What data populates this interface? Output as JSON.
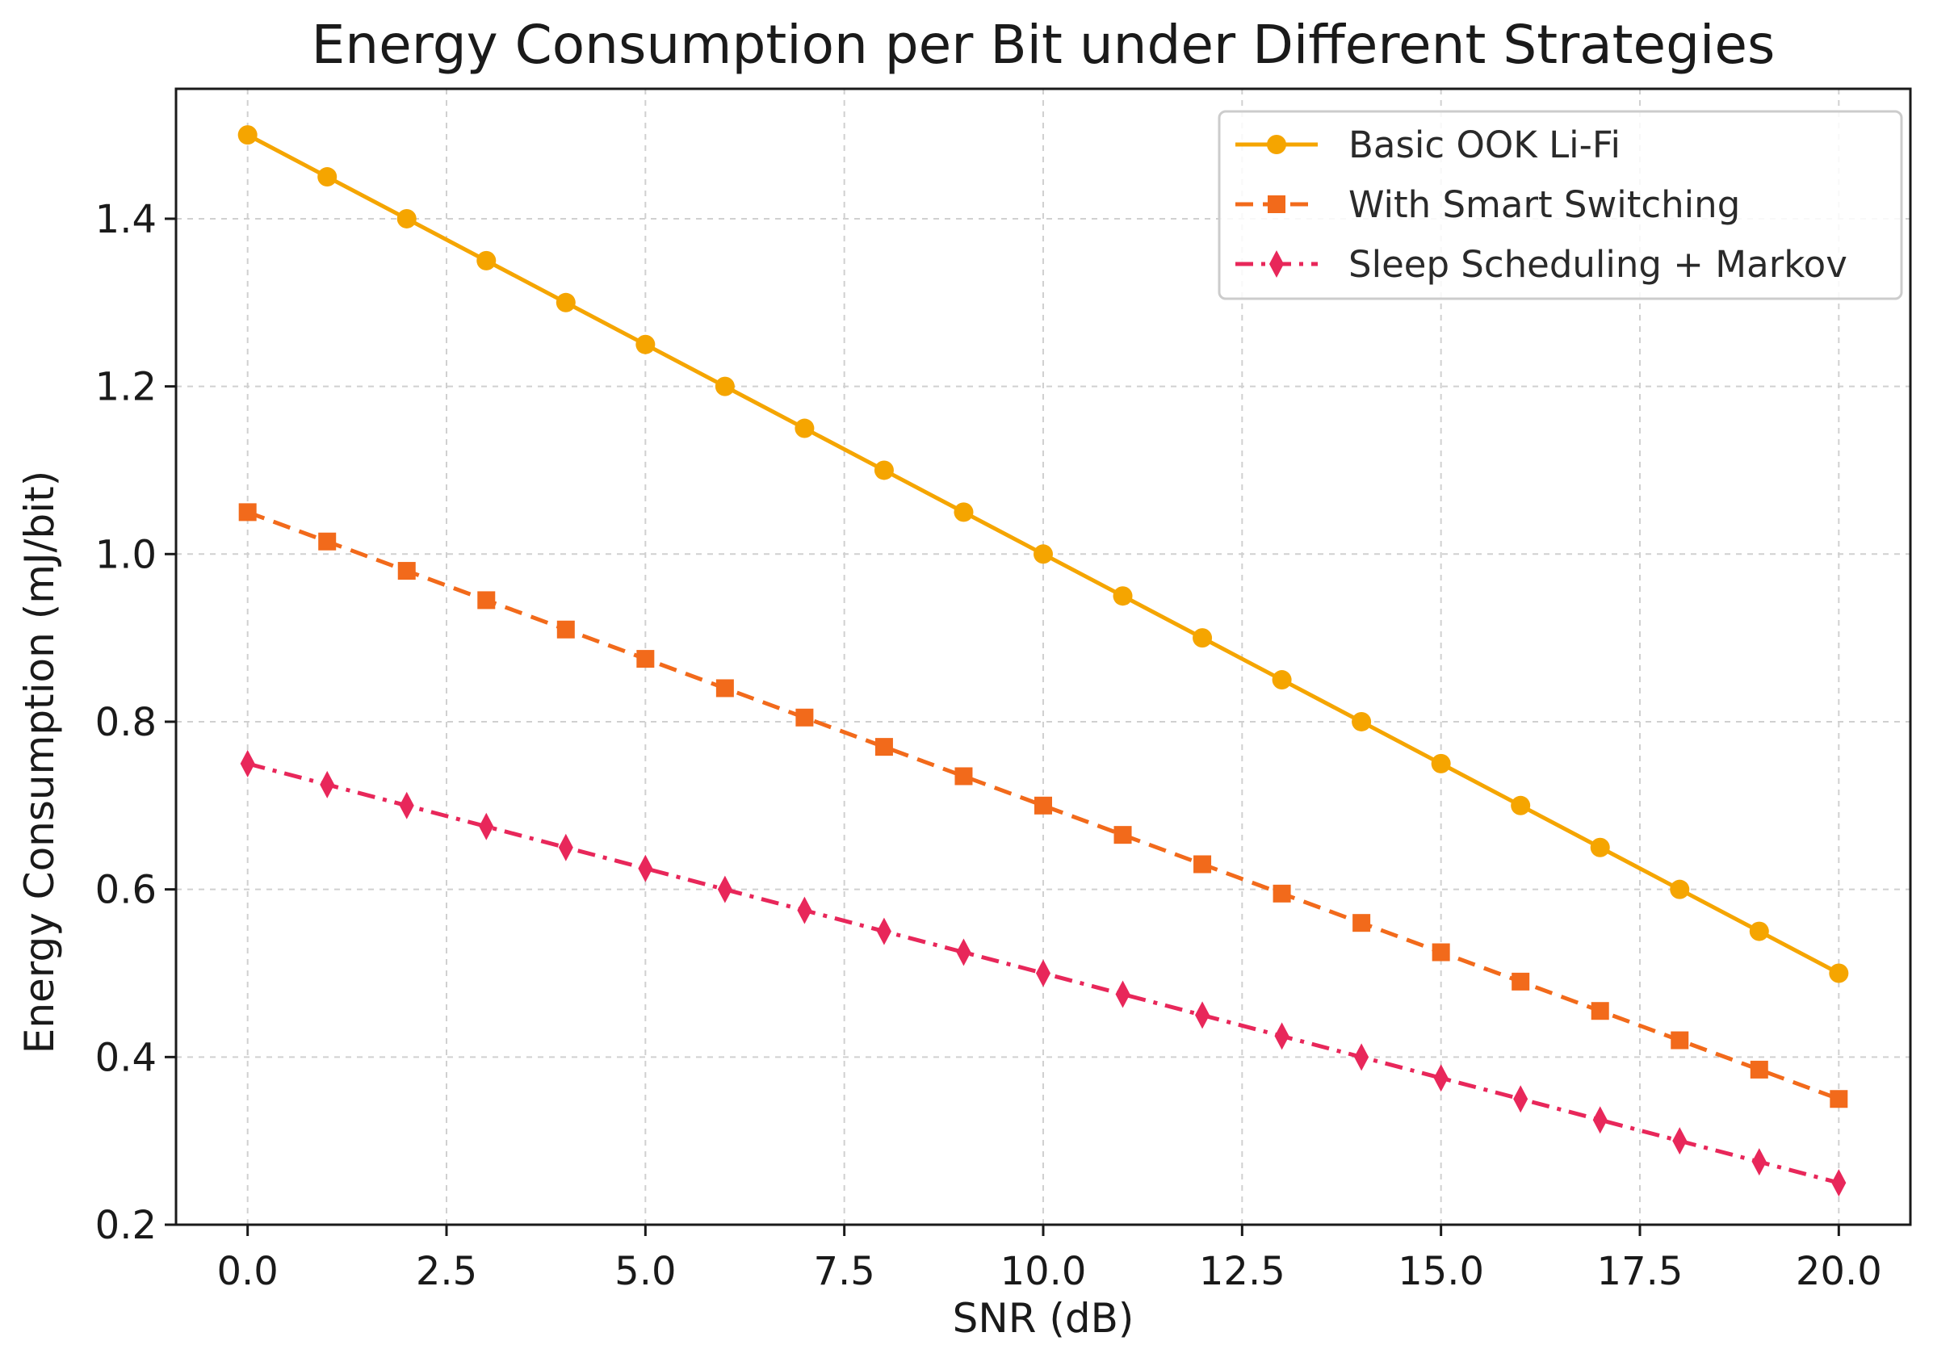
{
  "chart_data": {
    "type": "line",
    "title": "Energy Consumption per Bit under Different Strategies",
    "xlabel": "SNR (dB)",
    "ylabel": "Energy Consumption (mJ/bit)",
    "xlim": [
      -0.9,
      20.9
    ],
    "ylim": [
      0.2,
      1.555
    ],
    "xticks": [
      0.0,
      2.5,
      5.0,
      7.5,
      10.0,
      12.5,
      15.0,
      17.5,
      20.0
    ],
    "xtick_labels": [
      "0.0",
      "2.5",
      "5.0",
      "7.5",
      "10.0",
      "12.5",
      "15.0",
      "17.5",
      "20.0"
    ],
    "yticks": [
      0.2,
      0.4,
      0.6,
      0.8,
      1.0,
      1.2,
      1.4
    ],
    "ytick_labels": [
      "0.2",
      "0.4",
      "0.6",
      "0.8",
      "1.0",
      "1.2",
      "1.4"
    ],
    "grid": true,
    "legend_position": "top-right",
    "x": [
      0,
      1,
      2,
      3,
      4,
      5,
      6,
      7,
      8,
      9,
      10,
      11,
      12,
      13,
      14,
      15,
      16,
      17,
      18,
      19,
      20
    ],
    "series": [
      {
        "name": "Basic OOK Li-Fi",
        "color": "#f5a500",
        "line_style": "solid",
        "marker": "circle",
        "values": [
          1.5,
          1.45,
          1.4,
          1.35,
          1.3,
          1.25,
          1.2,
          1.15,
          1.1,
          1.05,
          1.0,
          0.95,
          0.9,
          0.85,
          0.8,
          0.75,
          0.7,
          0.65,
          0.6,
          0.55,
          0.5
        ]
      },
      {
        "name": "With Smart Switching",
        "color": "#f26a1b",
        "line_style": "dashed",
        "marker": "square",
        "values": [
          1.05,
          1.015,
          0.98,
          0.945,
          0.91,
          0.875,
          0.84,
          0.805,
          0.77,
          0.735,
          0.7,
          0.665,
          0.63,
          0.595,
          0.56,
          0.525,
          0.49,
          0.455,
          0.42,
          0.385,
          0.35
        ]
      },
      {
        "name": "Sleep Scheduling + Markov",
        "color": "#e8275a",
        "line_style": "dashdot",
        "marker": "diamond",
        "values": [
          0.75,
          0.725,
          0.7,
          0.675,
          0.65,
          0.625,
          0.6,
          0.575,
          0.55,
          0.525,
          0.5,
          0.475,
          0.45,
          0.425,
          0.4,
          0.375,
          0.35,
          0.325,
          0.3,
          0.275,
          0.25
        ]
      }
    ]
  }
}
